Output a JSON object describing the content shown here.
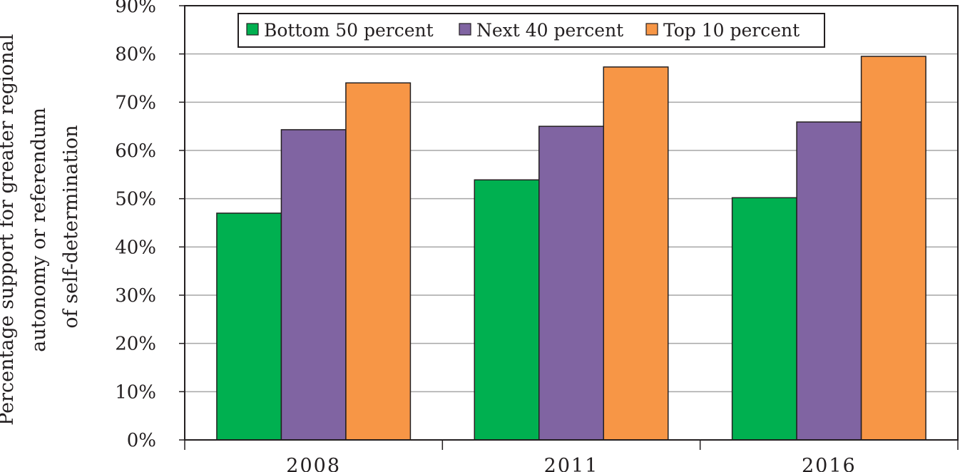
{
  "chart_data": {
    "type": "bar",
    "title": "",
    "xlabel": "",
    "ylabel_lines": [
      "Percentage support for greater regional",
      "autonomy or referendum",
      "of self-determination"
    ],
    "categories": [
      "2008",
      "2011",
      "2016"
    ],
    "series": [
      {
        "name": "Bottom 50 percent",
        "color": "#00b050",
        "values": [
          47.0,
          53.9,
          50.2
        ]
      },
      {
        "name": "Next 40 percent",
        "color": "#8064a2",
        "values": [
          64.3,
          65.0,
          65.9
        ]
      },
      {
        "name": "Top 10 percent",
        "color": "#f79646",
        "values": [
          74.0,
          77.3,
          79.5
        ]
      }
    ],
    "ylim": [
      0,
      90
    ],
    "yticks": [
      "0%",
      "10%",
      "20%",
      "30%",
      "40%",
      "50%",
      "60%",
      "70%",
      "80%",
      "90%"
    ],
    "grid": true,
    "legend_position": "top"
  }
}
